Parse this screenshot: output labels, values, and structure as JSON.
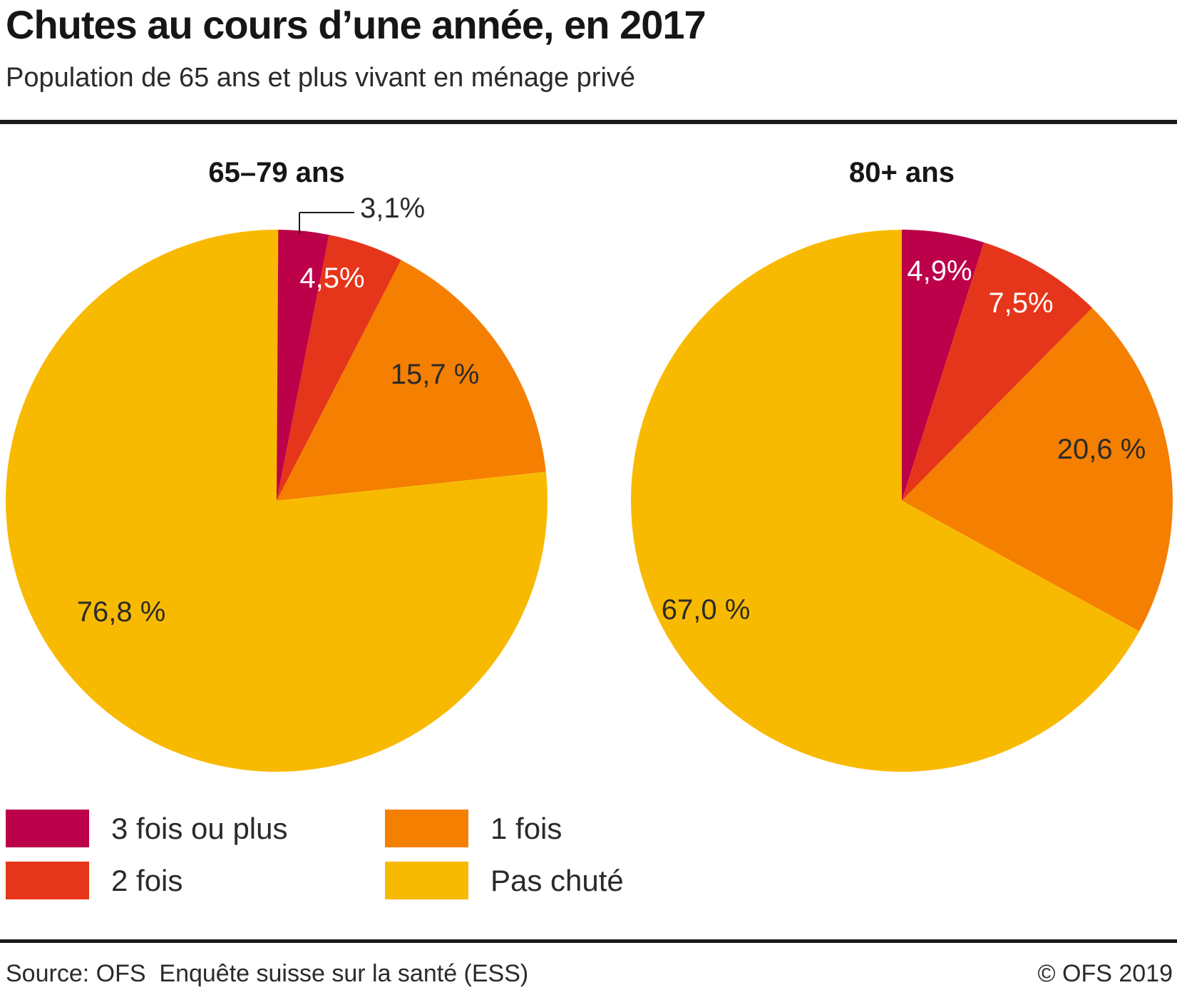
{
  "header": {
    "title": "Chutes au cours d’une année, en 2017",
    "subtitle": "Population de 65 ans et plus vivant en ménage privé"
  },
  "footer": {
    "source": "Source: OFS  Enquête suisse sur la santé (ESS)",
    "copyright": "© OFS 2019"
  },
  "chart_data": {
    "type": "pie",
    "title": "Chutes au cours d’une année, en 2017",
    "subtitle": "Population de 65 ans et plus vivant en ménage privé",
    "start_angle_deg": 0,
    "direction": "clockwise",
    "legend_position": "bottom-left",
    "legend": [
      {
        "label": "3 fois ou plus",
        "color": "#bc0049"
      },
      {
        "label": "2 fois",
        "color": "#e5351a"
      },
      {
        "label": "1 fois",
        "color": "#f57f00"
      },
      {
        "label": "Pas chuté",
        "color": "#f8ba00"
      }
    ],
    "pies": [
      {
        "title": "65–79 ans",
        "categories": [
          "3 fois ou plus",
          "2 fois",
          "1 fois",
          "Pas chuté"
        ],
        "values": [
          3.1,
          4.5,
          15.7,
          76.8
        ],
        "value_labels": [
          "3,1%",
          "4,5%",
          "15,7 %",
          "76,8 %"
        ]
      },
      {
        "title": "80+ ans",
        "categories": [
          "3 fois ou plus",
          "2 fois",
          "1 fois",
          "Pas chuté"
        ],
        "values": [
          4.9,
          7.5,
          20.6,
          67.0
        ],
        "value_labels": [
          "4,9%",
          "7,5%",
          "20,6 %",
          "67,0 %"
        ]
      }
    ],
    "label_colors": {
      "dark": "#2b2b2b",
      "light": "#ffffff"
    },
    "leader_line_color": "#1a1a1a"
  }
}
